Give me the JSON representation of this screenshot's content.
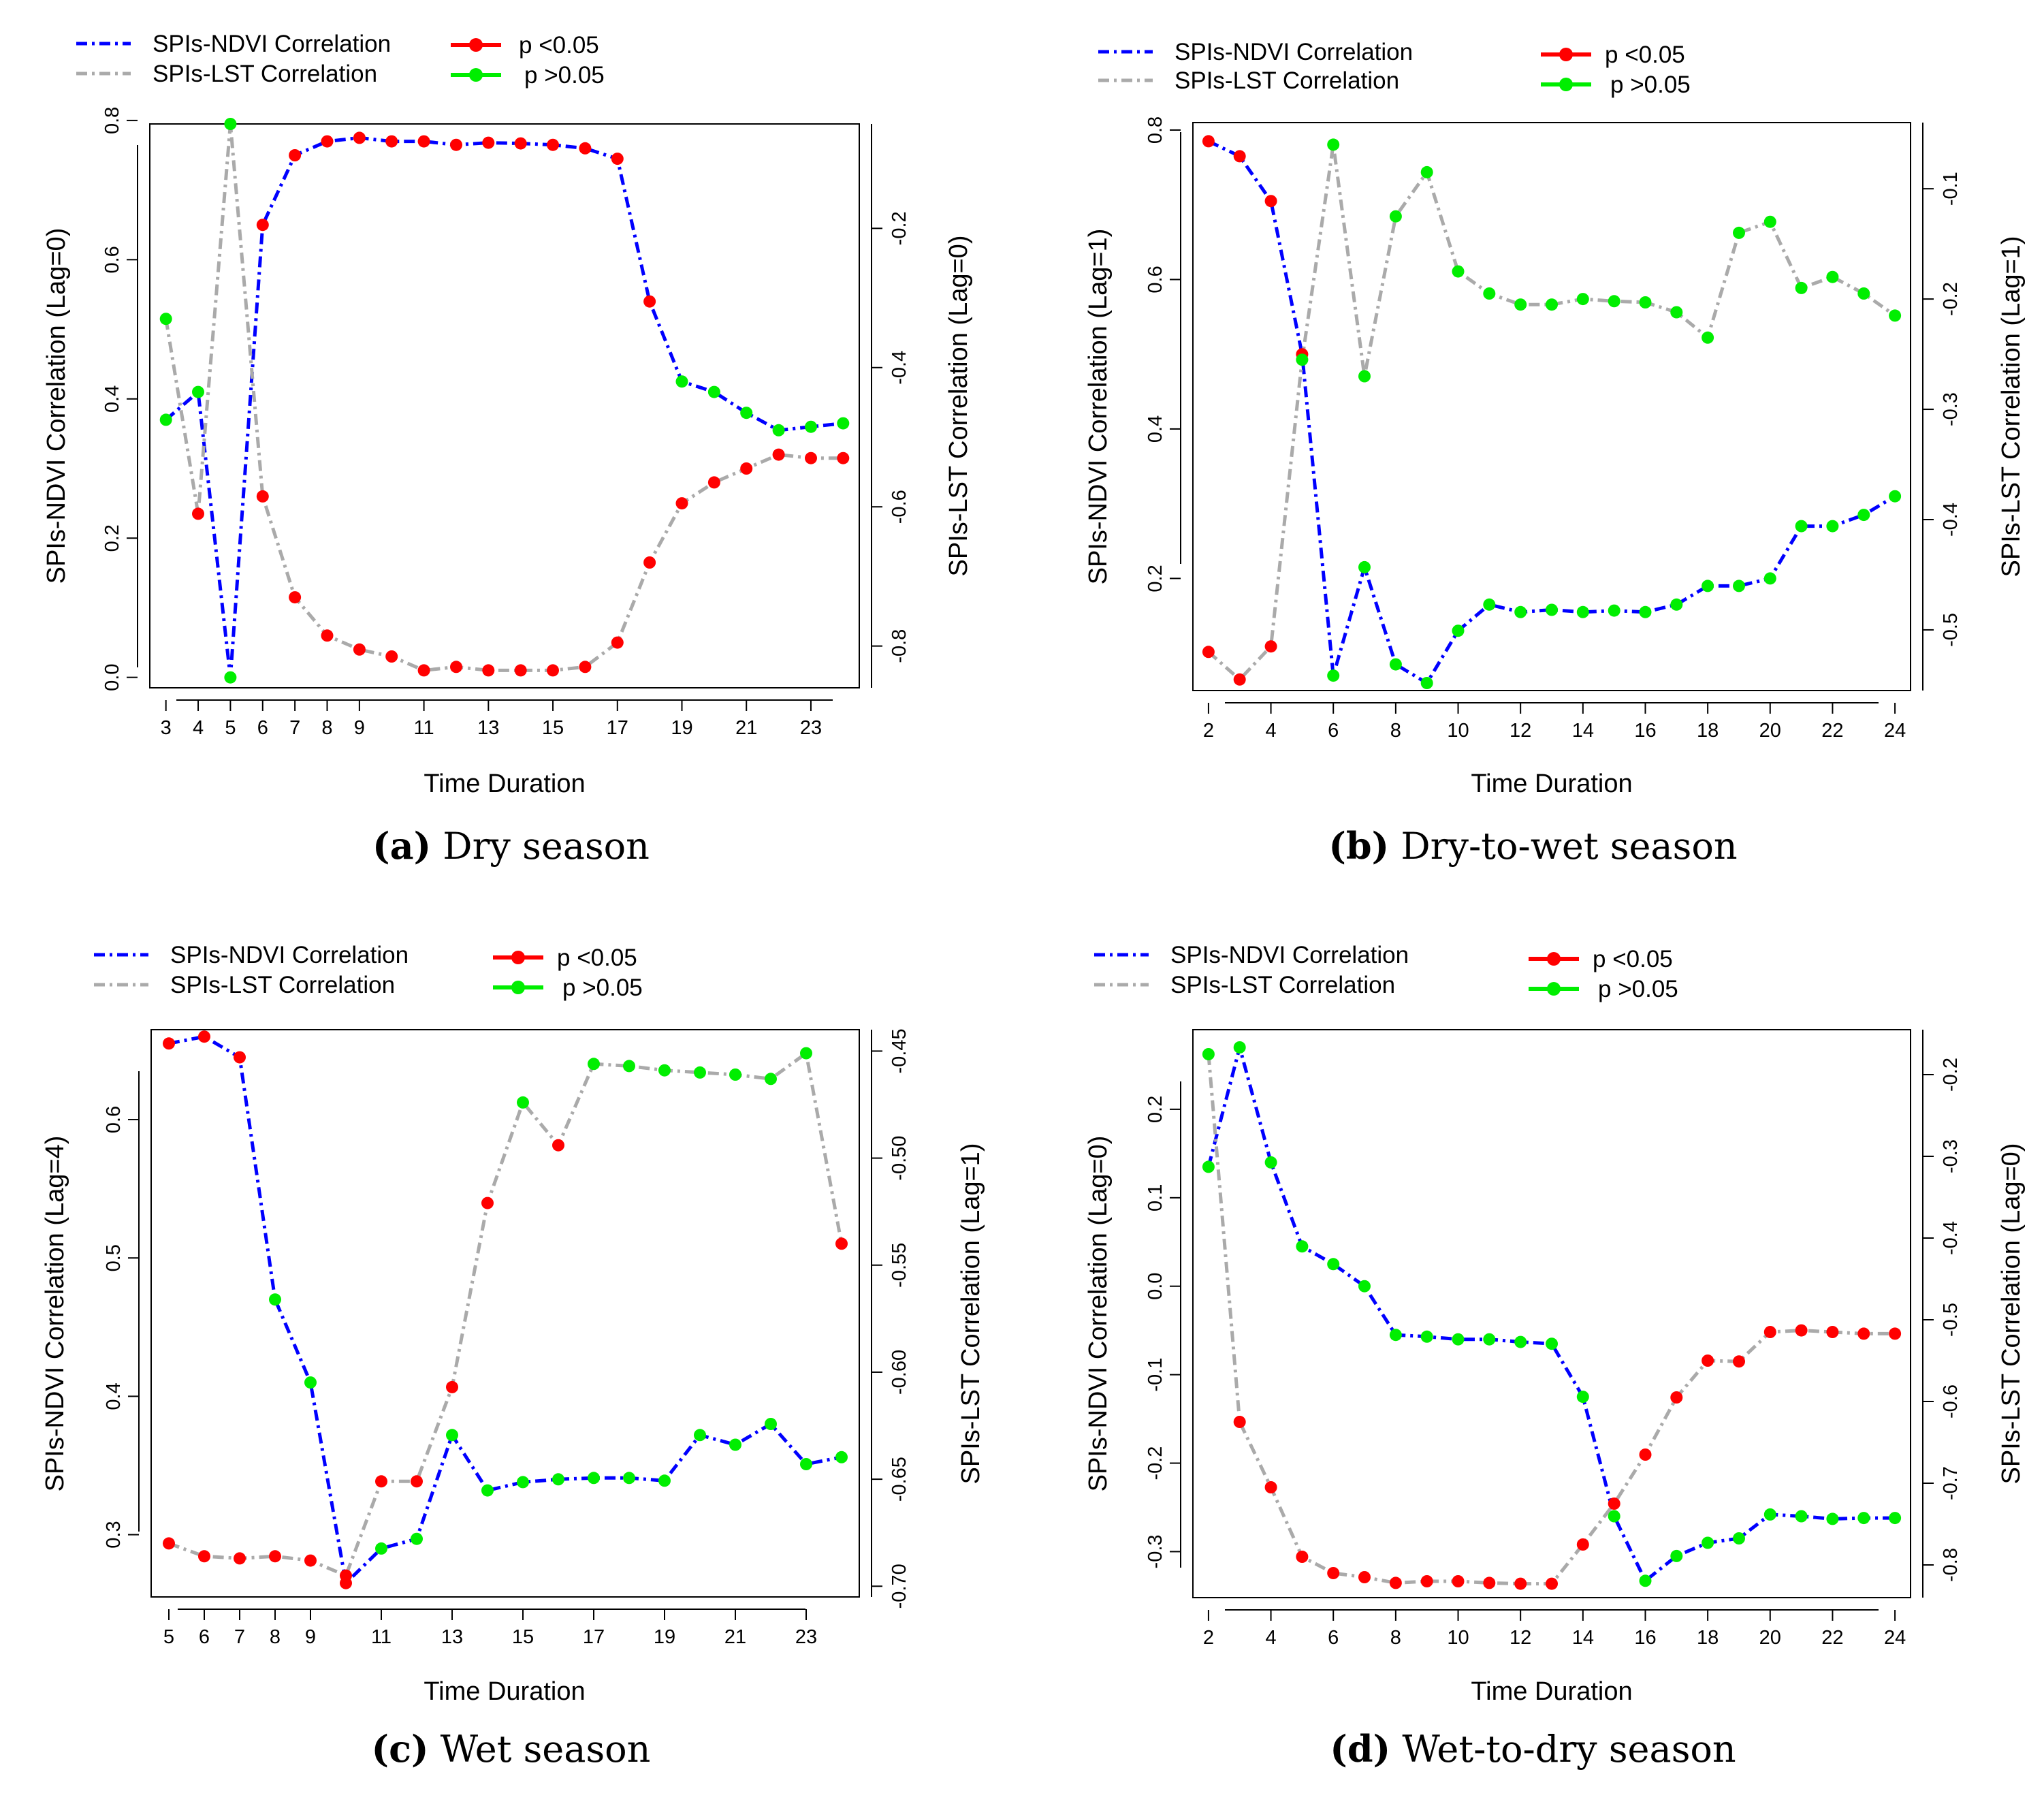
{
  "colors": {
    "ndvi_line": "#0000ff",
    "lst_line": "#aaaaaa",
    "sig": "#ff0000",
    "nonsig": "#00ee00",
    "axis": "#000000"
  },
  "legend": {
    "ndvi_label": "SPIs-NDVI Correlation",
    "lst_label": "SPIs-LST Correlation",
    "sig_label": "p <0.05",
    "nonsig_label": "p >0.05"
  },
  "chart_data": [
    {
      "type": "line",
      "panel_label": "(a)",
      "title": "Dry season",
      "xlabel": "Time Duration",
      "ylabel_left": "SPIs-NDVI Correlation (Lag=0)",
      "ylabel_right": "SPIs-LST Correlation (Lag=0)",
      "x": [
        3,
        4,
        5,
        6,
        7,
        8,
        9,
        10,
        11,
        12,
        13,
        14,
        15,
        16,
        17,
        18,
        19,
        20,
        21,
        22,
        23,
        24
      ],
      "x_ticks": [
        3,
        4,
        5,
        6,
        7,
        8,
        9,
        11,
        13,
        15,
        17,
        19,
        21,
        23
      ],
      "xlim": [
        2.5,
        24.5
      ],
      "left_ticks": [
        0.0,
        0.2,
        0.4,
        0.6,
        0.8
      ],
      "left_tick_labels": [
        "0.0",
        "0.2",
        "0.4",
        "0.6",
        "0.8"
      ],
      "left_ylim": [
        -0.015,
        0.795
      ],
      "right_ticks": [
        -0.8,
        -0.6,
        -0.4,
        -0.2
      ],
      "right_tick_labels": [
        "-0.8",
        "-0.6",
        "-0.4",
        "-0.2"
      ],
      "right_ylim": [
        -0.86,
        -0.05
      ],
      "series": [
        {
          "name": "SPIs-NDVI Correlation",
          "axis": "left",
          "values": [
            0.37,
            0.41,
            0.0,
            0.65,
            0.75,
            0.77,
            0.775,
            0.77,
            0.77,
            0.765,
            0.768,
            0.767,
            0.765,
            0.76,
            0.745,
            0.54,
            0.425,
            0.41,
            0.38,
            0.355,
            0.36,
            0.365
          ],
          "significant": [
            0,
            0,
            0,
            1,
            1,
            1,
            1,
            1,
            1,
            1,
            1,
            1,
            1,
            1,
            1,
            1,
            0,
            0,
            0,
            0,
            0,
            0
          ]
        },
        {
          "name": "SPIs-LST Correlation",
          "axis": "right",
          "values": [
            -0.33,
            -0.61,
            -0.05,
            -0.585,
            -0.73,
            -0.785,
            -0.805,
            -0.815,
            -0.835,
            -0.83,
            -0.835,
            -0.835,
            -0.835,
            -0.83,
            -0.795,
            -0.68,
            -0.595,
            -0.565,
            -0.545,
            -0.525,
            -0.53,
            -0.53
          ],
          "significant": [
            0,
            1,
            0,
            1,
            1,
            1,
            1,
            1,
            1,
            1,
            1,
            1,
            1,
            1,
            1,
            1,
            1,
            1,
            1,
            1,
            1,
            1
          ]
        }
      ]
    },
    {
      "type": "line",
      "panel_label": "(b)",
      "title": "Dry-to-wet season",
      "xlabel": "Time Duration",
      "ylabel_left": "SPIs-NDVI Correlation (Lag=1)",
      "ylabel_right": "SPIs-LST Correlation (Lag=1)",
      "x": [
        2,
        3,
        4,
        5,
        6,
        7,
        8,
        9,
        10,
        11,
        12,
        13,
        14,
        15,
        16,
        17,
        18,
        19,
        20,
        21,
        22,
        23,
        24
      ],
      "x_ticks": [
        2,
        4,
        6,
        8,
        10,
        12,
        14,
        16,
        18,
        20,
        22,
        24
      ],
      "xlim": [
        1.5,
        24.5
      ],
      "left_ticks": [
        0.2,
        0.4,
        0.6,
        0.8
      ],
      "left_tick_labels": [
        "0.2",
        "0.4",
        "0.6",
        "0.8"
      ],
      "left_ylim": [
        0.05,
        0.81
      ],
      "right_ticks": [
        -0.5,
        -0.4,
        -0.3,
        -0.2,
        -0.1
      ],
      "right_tick_labels": [
        "-0.5",
        "-0.4",
        "-0.3",
        "-0.2",
        "-0.1"
      ],
      "right_ylim": [
        -0.555,
        -0.04
      ],
      "series": [
        {
          "name": "SPIs-NDVI Correlation",
          "axis": "left",
          "values": [
            0.785,
            0.765,
            0.705,
            0.5,
            0.07,
            0.215,
            0.085,
            0.06,
            0.13,
            0.165,
            0.155,
            0.158,
            0.155,
            0.157,
            0.155,
            0.165,
            0.19,
            0.19,
            0.2,
            0.27,
            0.27,
            0.285,
            0.31
          ],
          "significant": [
            1,
            1,
            1,
            1,
            0,
            0,
            0,
            0,
            0,
            0,
            0,
            0,
            0,
            0,
            0,
            0,
            0,
            0,
            0,
            0,
            0,
            0,
            0
          ]
        },
        {
          "name": "SPIs-LST Correlation",
          "axis": "right",
          "values": [
            -0.52,
            -0.545,
            -0.515,
            -0.255,
            -0.06,
            -0.27,
            -0.125,
            -0.085,
            -0.175,
            -0.195,
            -0.205,
            -0.205,
            -0.2,
            -0.202,
            -0.203,
            -0.212,
            -0.235,
            -0.14,
            -0.13,
            -0.19,
            -0.18,
            -0.195,
            -0.215
          ],
          "significant": [
            1,
            1,
            1,
            0,
            0,
            0,
            0,
            0,
            0,
            0,
            0,
            0,
            0,
            0,
            0,
            0,
            0,
            0,
            0,
            0,
            0,
            0,
            0
          ]
        }
      ]
    },
    {
      "type": "line",
      "panel_label": "(c)",
      "title": "Wet season",
      "xlabel": "Time Duration",
      "ylabel_left": "SPIs-NDVI Correlation (Lag=4)",
      "ylabel_right": "SPIs-LST Correlation (Lag=1)",
      "x": [
        5,
        6,
        7,
        8,
        9,
        10,
        11,
        12,
        13,
        14,
        15,
        16,
        17,
        18,
        19,
        20,
        21,
        22,
        23,
        24
      ],
      "x_ticks": [
        5,
        6,
        7,
        8,
        9,
        11,
        13,
        15,
        17,
        19,
        21,
        23
      ],
      "xlim": [
        4.5,
        24.5
      ],
      "left_ticks": [
        0.3,
        0.4,
        0.5,
        0.6
      ],
      "left_tick_labels": [
        "0.3",
        "0.4",
        "0.5",
        "0.6"
      ],
      "left_ylim": [
        0.255,
        0.665
      ],
      "right_ticks": [
        -0.7,
        -0.65,
        -0.6,
        -0.55,
        -0.5,
        -0.45
      ],
      "right_tick_labels": [
        "-0.70",
        "-0.65",
        "-0.60",
        "-0.55",
        "-0.50",
        "-0.45"
      ],
      "right_ylim": [
        -0.705,
        -0.44
      ],
      "series": [
        {
          "name": "SPIs-NDVI Correlation",
          "axis": "left",
          "values": [
            0.655,
            0.66,
            0.645,
            0.47,
            0.41,
            0.265,
            0.29,
            0.297,
            0.372,
            0.332,
            0.338,
            0.34,
            0.341,
            0.341,
            0.339,
            0.372,
            0.365,
            0.38,
            0.351,
            0.356
          ],
          "significant": [
            1,
            1,
            1,
            0,
            0,
            1,
            0,
            0,
            0,
            0,
            0,
            0,
            0,
            0,
            0,
            0,
            0,
            0,
            0,
            0
          ]
        },
        {
          "name": "SPIs-LST Correlation",
          "axis": "right",
          "values": [
            -0.68,
            -0.686,
            -0.687,
            -0.686,
            -0.688,
            -0.695,
            -0.651,
            -0.651,
            -0.607,
            -0.521,
            -0.474,
            -0.494,
            -0.456,
            -0.457,
            -0.459,
            -0.46,
            -0.461,
            -0.463,
            -0.451,
            -0.54
          ],
          "significant": [
            1,
            1,
            1,
            1,
            1,
            1,
            1,
            1,
            1,
            1,
            0,
            1,
            0,
            0,
            0,
            0,
            0,
            0,
            0,
            1
          ]
        }
      ]
    },
    {
      "type": "line",
      "panel_label": "(d)",
      "title": "Wet-to-dry season",
      "xlabel": "Time Duration",
      "ylabel_left": "SPIs-NDVI Correlation (Lag=0)",
      "ylabel_right": "SPIs-LST Correlation (Lag=0)",
      "x": [
        2,
        3,
        4,
        5,
        6,
        7,
        8,
        9,
        10,
        11,
        12,
        13,
        14,
        15,
        16,
        17,
        18,
        19,
        20,
        21,
        22,
        23,
        24
      ],
      "x_ticks": [
        2,
        4,
        6,
        8,
        10,
        12,
        14,
        16,
        18,
        20,
        22,
        24
      ],
      "xlim": [
        1.5,
        24.5
      ],
      "left_ticks": [
        -0.3,
        -0.2,
        -0.1,
        0.0,
        0.1,
        0.2
      ],
      "left_tick_labels": [
        "-0.3",
        "-0.2",
        "-0.1",
        "0.0",
        "0.1",
        "0.2"
      ],
      "left_ylim": [
        -0.352,
        0.29
      ],
      "right_ticks": [
        -0.8,
        -0.7,
        -0.6,
        -0.5,
        -0.4,
        -0.3,
        -0.2
      ],
      "right_tick_labels": [
        "-0.8",
        "-0.7",
        "-0.6",
        "-0.5",
        "-0.4",
        "-0.3",
        "-0.2"
      ],
      "right_ylim": [
        -0.84,
        -0.145
      ],
      "series": [
        {
          "name": "SPIs-NDVI Correlation",
          "axis": "left",
          "values": [
            0.135,
            0.27,
            0.14,
            0.045,
            0.025,
            0.0,
            -0.055,
            -0.057,
            -0.06,
            -0.06,
            -0.063,
            -0.065,
            -0.125,
            -0.26,
            -0.333,
            -0.305,
            -0.29,
            -0.285,
            -0.258,
            -0.26,
            -0.263,
            -0.262,
            -0.262
          ],
          "significant": [
            0,
            0,
            0,
            0,
            0,
            0,
            0,
            0,
            0,
            0,
            0,
            0,
            0,
            0,
            0,
            0,
            0,
            0,
            0,
            0,
            0,
            0,
            0
          ]
        },
        {
          "name": "SPIs-LST Correlation",
          "axis": "right",
          "values": [
            -0.175,
            -0.625,
            -0.705,
            -0.79,
            -0.81,
            -0.815,
            -0.822,
            -0.82,
            -0.82,
            -0.822,
            -0.823,
            -0.823,
            -0.775,
            -0.725,
            -0.665,
            -0.595,
            -0.55,
            -0.551,
            -0.515,
            -0.513,
            -0.515,
            -0.517,
            -0.517
          ],
          "significant": [
            0,
            1,
            1,
            1,
            1,
            1,
            1,
            1,
            1,
            1,
            1,
            1,
            1,
            1,
            1,
            1,
            1,
            1,
            1,
            1,
            1,
            1,
            1
          ]
        }
      ]
    }
  ]
}
